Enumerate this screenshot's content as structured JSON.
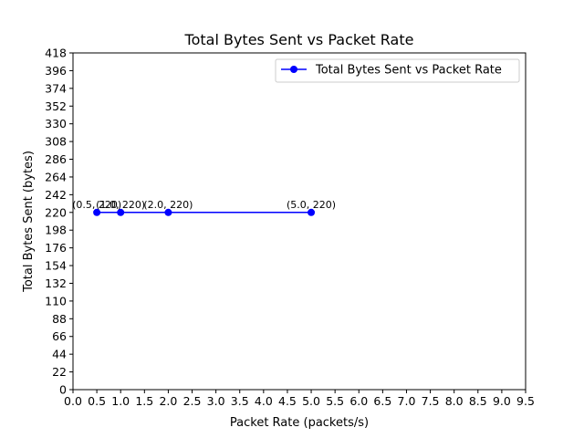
{
  "chart_data": {
    "type": "line",
    "title": "Total Bytes Sent vs Packet Rate",
    "xlabel": "Packet Rate (packets/s)",
    "ylabel": "Total Bytes Sent (bytes)",
    "xlim": [
      0,
      9.5
    ],
    "ylim": [
      0,
      418
    ],
    "xticks": [
      "0.0",
      "0.5",
      "1.0",
      "1.5",
      "2.0",
      "2.5",
      "3.0",
      "3.5",
      "4.0",
      "4.5",
      "5.0",
      "5.5",
      "6.0",
      "6.5",
      "7.0",
      "7.5",
      "8.0",
      "8.5",
      "9.0",
      "9.5"
    ],
    "yticks": [
      "0",
      "22",
      "44",
      "66",
      "88",
      "110",
      "132",
      "154",
      "176",
      "198",
      "220",
      "242",
      "264",
      "286",
      "308",
      "330",
      "352",
      "374",
      "396",
      "418"
    ],
    "grid": false,
    "legend_position": "top-right",
    "series": [
      {
        "name": "Total Bytes Sent vs Packet Rate",
        "color": "#0000ff",
        "marker": "circle",
        "x": [
          0.5,
          1.0,
          2.0,
          5.0
        ],
        "y": [
          220,
          220,
          220,
          220
        ],
        "labels": [
          "(0.5, 220)",
          "(1.0, 220)",
          "(2.0, 220)",
          "(5.0, 220)"
        ]
      }
    ]
  }
}
